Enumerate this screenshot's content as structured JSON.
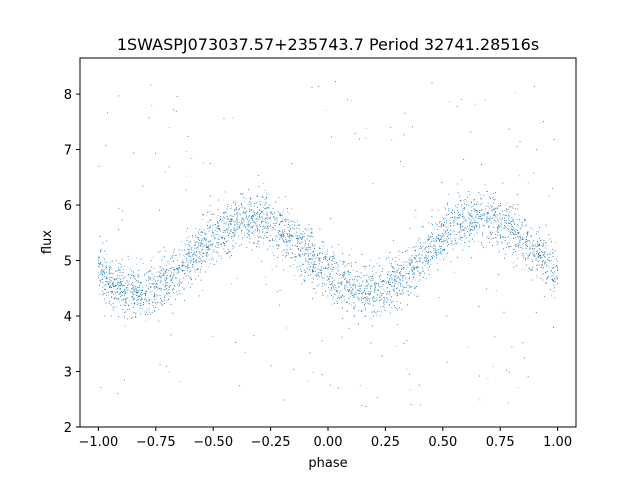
{
  "chart_data": {
    "type": "scatter",
    "title": "1SWASPJ073037.57+235743.7 Period 32741.28516s",
    "xlabel": "phase",
    "ylabel": "flux",
    "xlim": [
      -1.08,
      1.08
    ],
    "ylim": [
      2.0,
      8.65
    ],
    "xticks": [
      -1.0,
      -0.75,
      -0.5,
      -0.25,
      0.0,
      0.25,
      0.5,
      0.75,
      1.0
    ],
    "xtick_labels": [
      "−1.00",
      "−0.75",
      "−0.50",
      "−0.25",
      "0.00",
      "0.25",
      "0.50",
      "0.75",
      "1.00"
    ],
    "yticks": [
      2,
      3,
      4,
      5,
      6,
      7,
      8
    ],
    "ytick_labels": [
      "2",
      "3",
      "4",
      "5",
      "6",
      "7",
      "8"
    ],
    "grid": false,
    "marker_color": "#1f77b4",
    "series": [
      {
        "x_range": [
          -1.0,
          1.0
        ],
        "mean_flux": 5.1,
        "amplitude": 0.65,
        "phase_of_maximum": [
          -0.33,
          0.67
        ],
        "phase_of_minimum": [
          -0.83,
          0.17
        ],
        "sample_curve": {
          "x": [
            -1.0,
            -0.9,
            -0.83,
            -0.75,
            -0.6,
            -0.5,
            -0.4,
            -0.33,
            -0.25,
            -0.1,
            0.0,
            0.1,
            0.17,
            0.25,
            0.4,
            0.5,
            0.6,
            0.67,
            0.75,
            0.9,
            1.0
          ],
          "y": [
            4.9,
            4.55,
            4.45,
            4.55,
            5.2,
            5.55,
            5.75,
            5.8,
            5.75,
            5.35,
            4.9,
            4.55,
            4.45,
            4.55,
            5.2,
            5.55,
            5.75,
            5.8,
            5.75,
            5.35,
            4.9
          ]
        }
      }
    ]
  }
}
